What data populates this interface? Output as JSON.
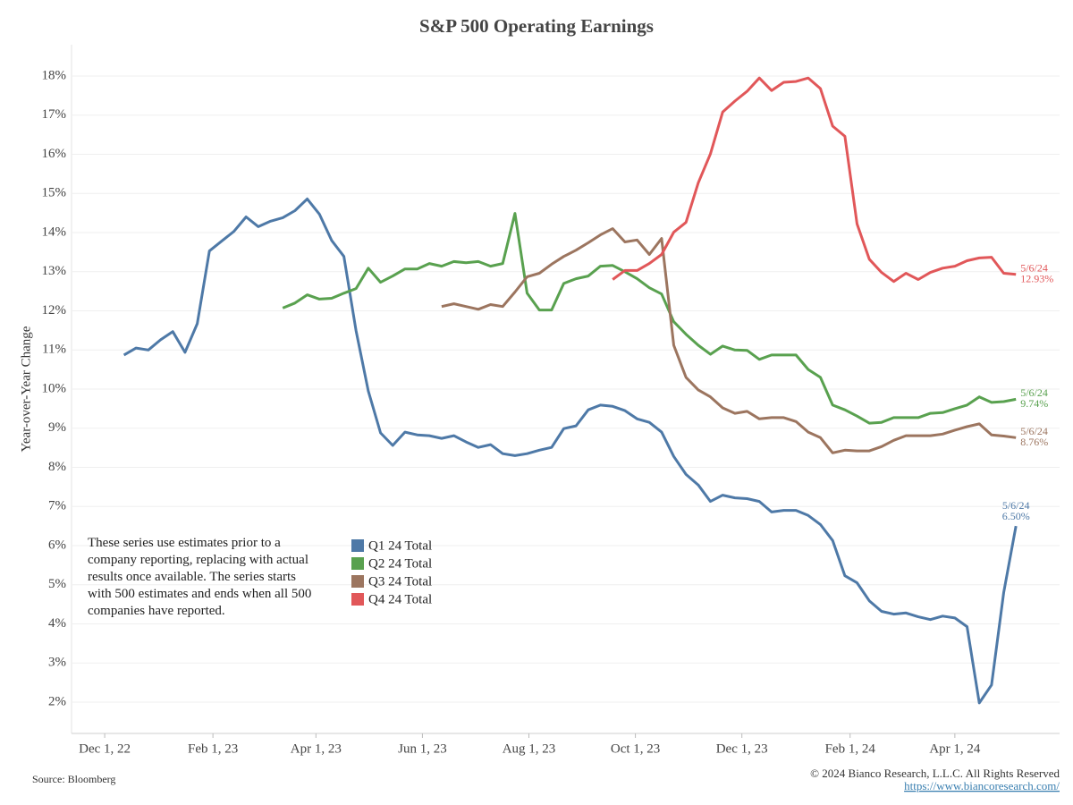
{
  "chart_data": {
    "type": "line",
    "title": "S&P 500 Operating Earnings",
    "y_label": "Year-over-Year Change",
    "note": "These series use estimates prior to a company reporting, replacing with actual results once available. The series starts with 500 estimates and ends when all 500 companies have reported.",
    "source": "Source: Bloomberg",
    "copyright": "© 2024 Bianco Research, L.L.C. All Rights Reserved",
    "url": "https://www.biancoresearch.com/",
    "grid": true,
    "legend": "lower left",
    "xlim": [
      "2022-11-12",
      "2024-05-31"
    ],
    "xticks": [
      {
        "value": "2022-12-01",
        "label": "Dec 1, 22"
      },
      {
        "value": "2023-02-01",
        "label": "Feb 1, 23"
      },
      {
        "value": "2023-04-01",
        "label": "Apr 1, 23"
      },
      {
        "value": "2023-06-01",
        "label": "Jun 1, 23"
      },
      {
        "value": "2023-08-01",
        "label": "Aug 1, 23"
      },
      {
        "value": "2023-10-01",
        "label": "Oct 1, 23"
      },
      {
        "value": "2023-12-01",
        "label": "Dec 1, 23"
      },
      {
        "value": "2024-02-01",
        "label": "Feb 1, 24"
      },
      {
        "value": "2024-04-01",
        "label": "Apr 1, 24"
      }
    ],
    "ylim": [
      1.2,
      18.8
    ],
    "yticks": [
      {
        "value": 2,
        "label": "2%"
      },
      {
        "value": 3,
        "label": "3%"
      },
      {
        "value": 4,
        "label": "4%"
      },
      {
        "value": 5,
        "label": "5%"
      },
      {
        "value": 6,
        "label": "6%"
      },
      {
        "value": 7,
        "label": "7%"
      },
      {
        "value": 8,
        "label": "8%"
      },
      {
        "value": 9,
        "label": "9%"
      },
      {
        "value": 10,
        "label": "10%"
      },
      {
        "value": 11,
        "label": "11%"
      },
      {
        "value": 12,
        "label": "12%"
      },
      {
        "value": 13,
        "label": "13%"
      },
      {
        "value": 14,
        "label": "14%"
      },
      {
        "value": 15,
        "label": "15%"
      },
      {
        "value": 16,
        "label": "16%"
      },
      {
        "value": 17,
        "label": "17%"
      },
      {
        "value": 18,
        "label": "18%"
      }
    ],
    "x": [
      "2022-12-12",
      "2022-12-19",
      "2022-12-26",
      "2023-01-02",
      "2023-01-09",
      "2023-01-16",
      "2023-01-23",
      "2023-01-30",
      "2023-02-06",
      "2023-02-13",
      "2023-02-20",
      "2023-02-27",
      "2023-03-06",
      "2023-03-13",
      "2023-03-20",
      "2023-03-27",
      "2023-04-03",
      "2023-04-10",
      "2023-04-17",
      "2023-04-24",
      "2023-05-01",
      "2023-05-08",
      "2023-05-15",
      "2023-05-22",
      "2023-05-29",
      "2023-06-05",
      "2023-06-12",
      "2023-06-19",
      "2023-06-26",
      "2023-07-03",
      "2023-07-10",
      "2023-07-17",
      "2023-07-24",
      "2023-07-31",
      "2023-08-07",
      "2023-08-14",
      "2023-08-21",
      "2023-08-28",
      "2023-09-04",
      "2023-09-11",
      "2023-09-18",
      "2023-09-25",
      "2023-10-02",
      "2023-10-09",
      "2023-10-16",
      "2023-10-23",
      "2023-10-30",
      "2023-11-06",
      "2023-11-13",
      "2023-11-20",
      "2023-11-27",
      "2023-12-04",
      "2023-12-11",
      "2023-12-18",
      "2023-12-25",
      "2024-01-01",
      "2024-01-08",
      "2024-01-15",
      "2024-01-22",
      "2024-01-29",
      "2024-02-05",
      "2024-02-12",
      "2024-02-19",
      "2024-02-26",
      "2024-03-04",
      "2024-03-11",
      "2024-03-18",
      "2024-03-25",
      "2024-04-01",
      "2024-04-08",
      "2024-04-15",
      "2024-04-22",
      "2024-04-29",
      "2024-05-06"
    ],
    "series": [
      {
        "name": "Q1 24 Total",
        "color": "#4e79a7",
        "end_date_label": "5/6/24",
        "values": [
          10.87,
          11.05,
          11.0,
          11.26,
          11.47,
          10.94,
          11.67,
          13.53,
          13.78,
          14.03,
          14.4,
          14.15,
          14.29,
          14.38,
          14.56,
          14.86,
          14.47,
          13.8,
          13.39,
          11.49,
          9.95,
          8.88,
          8.56,
          8.9,
          8.83,
          8.81,
          8.74,
          8.81,
          8.65,
          8.51,
          8.58,
          8.35,
          8.3,
          8.35,
          8.44,
          8.51,
          8.99,
          9.06,
          9.47,
          9.59,
          9.56,
          9.45,
          9.24,
          9.15,
          8.9,
          8.28,
          7.82,
          7.55,
          7.13,
          7.29,
          7.22,
          7.2,
          7.13,
          6.86,
          6.9,
          6.9,
          6.77,
          6.54,
          6.13,
          5.23,
          5.05,
          4.59,
          4.32,
          4.25,
          4.28,
          4.18,
          4.11,
          4.2,
          4.15,
          3.93,
          1.98,
          2.44,
          4.8,
          6.5
        ],
        "value_labels": [
          null,
          null,
          null,
          null,
          null,
          null,
          null,
          null,
          null,
          null,
          null,
          null,
          null,
          null,
          null,
          null,
          null,
          null,
          null,
          null,
          null,
          null,
          null,
          null,
          null,
          null,
          null,
          null,
          null,
          null,
          null,
          null,
          null,
          null,
          null,
          null,
          null,
          null,
          null,
          null,
          null,
          null,
          null,
          null,
          null,
          null,
          null,
          null,
          null,
          null,
          null,
          null,
          null,
          null,
          null,
          null,
          null,
          null,
          null,
          null,
          null,
          null,
          null,
          null,
          null,
          null,
          null,
          null,
          null,
          null,
          null,
          null,
          null,
          "6.50%"
        ]
      },
      {
        "name": "Q2 24 Total",
        "color": "#59a14f",
        "end_date_label": "5/6/24",
        "values": [
          null,
          null,
          null,
          null,
          null,
          null,
          null,
          null,
          null,
          null,
          null,
          null,
          null,
          12.07,
          12.2,
          12.41,
          12.3,
          12.32,
          12.45,
          12.57,
          13.09,
          12.73,
          12.89,
          13.07,
          13.07,
          13.21,
          13.14,
          13.26,
          13.23,
          13.26,
          13.14,
          13.21,
          14.49,
          12.45,
          12.02,
          12.02,
          12.7,
          12.82,
          12.89,
          13.14,
          13.16,
          13.0,
          12.82,
          12.59,
          12.43,
          11.72,
          11.4,
          11.12,
          10.89,
          11.1,
          11.0,
          10.99,
          10.76,
          10.87,
          10.87,
          10.87,
          10.5,
          10.3,
          9.59,
          9.47,
          9.31,
          9.13,
          9.15,
          9.27,
          9.27,
          9.27,
          9.38,
          9.4,
          9.5,
          9.59,
          9.8,
          9.66,
          9.68,
          9.74
        ],
        "value_labels": [
          null,
          null,
          null,
          null,
          null,
          null,
          null,
          null,
          null,
          null,
          null,
          null,
          null,
          null,
          null,
          null,
          null,
          null,
          null,
          null,
          null,
          null,
          null,
          null,
          null,
          null,
          null,
          null,
          null,
          null,
          null,
          null,
          null,
          null,
          null,
          null,
          null,
          null,
          null,
          null,
          null,
          null,
          null,
          null,
          null,
          null,
          null,
          null,
          null,
          null,
          null,
          null,
          null,
          null,
          null,
          null,
          null,
          null,
          null,
          null,
          null,
          null,
          null,
          null,
          null,
          null,
          null,
          null,
          null,
          null,
          null,
          null,
          null,
          "9.74%"
        ]
      },
      {
        "name": "Q3 24 Total",
        "color": "#9c755f",
        "end_date_label": "5/6/24",
        "values": [
          null,
          null,
          null,
          null,
          null,
          null,
          null,
          null,
          null,
          null,
          null,
          null,
          null,
          null,
          null,
          null,
          null,
          null,
          null,
          null,
          null,
          null,
          null,
          null,
          null,
          null,
          12.11,
          12.18,
          12.11,
          12.04,
          12.16,
          12.11,
          12.48,
          12.87,
          12.96,
          13.19,
          13.39,
          13.55,
          13.74,
          13.94,
          14.1,
          13.76,
          13.81,
          13.44,
          13.85,
          11.12,
          10.3,
          9.98,
          9.8,
          9.52,
          9.38,
          9.43,
          9.24,
          9.27,
          9.27,
          9.17,
          8.9,
          8.76,
          8.37,
          8.44,
          8.42,
          8.42,
          8.53,
          8.69,
          8.81,
          8.81,
          8.81,
          8.85,
          8.95,
          9.04,
          9.11,
          8.83,
          8.8,
          8.76
        ],
        "value_labels": [
          null,
          null,
          null,
          null,
          null,
          null,
          null,
          null,
          null,
          null,
          null,
          null,
          null,
          null,
          null,
          null,
          null,
          null,
          null,
          null,
          null,
          null,
          null,
          null,
          null,
          null,
          null,
          null,
          null,
          null,
          null,
          null,
          null,
          null,
          null,
          null,
          null,
          null,
          null,
          null,
          null,
          null,
          null,
          null,
          null,
          null,
          null,
          null,
          null,
          null,
          null,
          null,
          null,
          null,
          null,
          null,
          null,
          null,
          null,
          null,
          null,
          null,
          null,
          null,
          null,
          null,
          null,
          null,
          null,
          null,
          null,
          null,
          null,
          "8.76%"
        ]
      },
      {
        "name": "Q4 24 Total",
        "color": "#e15759",
        "end_date_label": "5/6/24",
        "values": [
          null,
          null,
          null,
          null,
          null,
          null,
          null,
          null,
          null,
          null,
          null,
          null,
          null,
          null,
          null,
          null,
          null,
          null,
          null,
          null,
          null,
          null,
          null,
          null,
          null,
          null,
          null,
          null,
          null,
          null,
          null,
          null,
          null,
          null,
          null,
          null,
          null,
          null,
          null,
          null,
          12.8,
          13.03,
          13.03,
          13.21,
          13.44,
          14.01,
          14.26,
          15.27,
          16.01,
          17.08,
          17.36,
          17.61,
          17.95,
          17.63,
          17.84,
          17.86,
          17.95,
          17.68,
          16.72,
          16.46,
          14.22,
          13.32,
          12.98,
          12.75,
          12.96,
          12.8,
          12.98,
          13.09,
          13.14,
          13.28,
          13.35,
          13.37,
          12.96,
          12.93
        ],
        "value_labels": [
          null,
          null,
          null,
          null,
          null,
          null,
          null,
          null,
          null,
          null,
          null,
          null,
          null,
          null,
          null,
          null,
          null,
          null,
          null,
          null,
          null,
          null,
          null,
          null,
          null,
          null,
          null,
          null,
          null,
          null,
          null,
          null,
          null,
          null,
          null,
          null,
          null,
          null,
          null,
          null,
          null,
          null,
          null,
          null,
          null,
          null,
          null,
          null,
          null,
          null,
          null,
          null,
          null,
          null,
          null,
          null,
          null,
          null,
          null,
          null,
          null,
          null,
          null,
          null,
          null,
          null,
          null,
          null,
          null,
          null,
          null,
          null,
          null,
          "12.93%"
        ]
      }
    ]
  }
}
